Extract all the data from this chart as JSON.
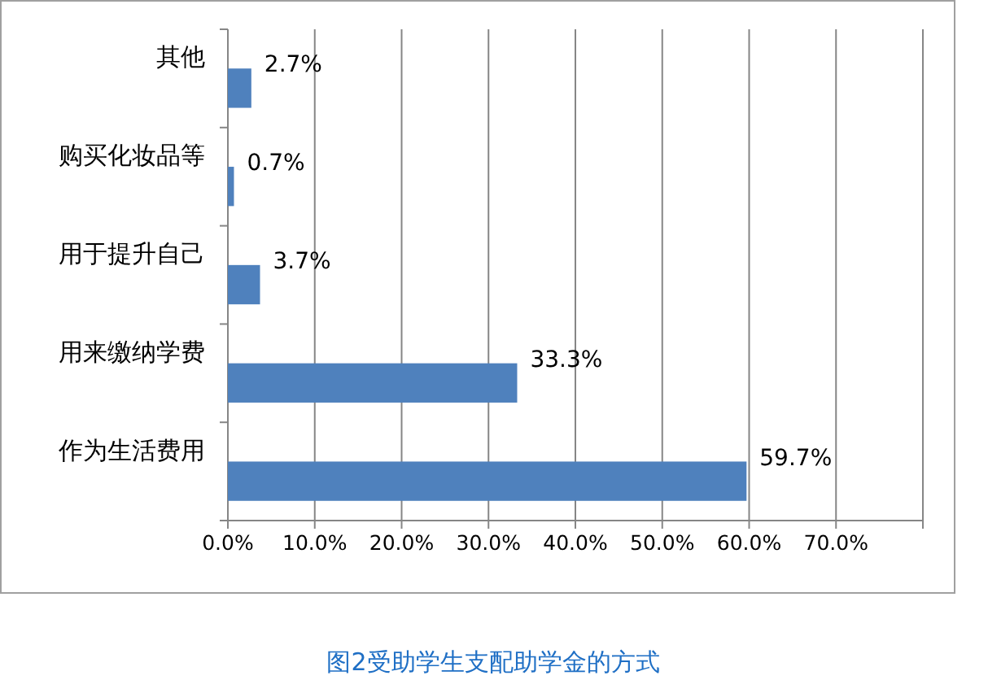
{
  "chart_data": {
    "type": "bar",
    "orientation": "horizontal",
    "title": "图2受助学生支配助学金的方式",
    "categories": [
      "其他",
      "购买化妆品等",
      "用于提升自己",
      "用来缴纳学费",
      "作为生活费用"
    ],
    "values": [
      2.7,
      0.7,
      3.7,
      33.3,
      59.7
    ],
    "value_labels": [
      "2.7%",
      "0.7%",
      "3.7%",
      "33.3%",
      "59.7%"
    ],
    "color": "#4f81bd",
    "xlim": [
      0,
      80
    ],
    "xticks": [
      {
        "value": 0,
        "label": "0.0%"
      },
      {
        "value": 10,
        "label": "10.0%"
      },
      {
        "value": 20,
        "label": "20.0%"
      },
      {
        "value": 30,
        "label": "30.0%"
      },
      {
        "value": 40,
        "label": "40.0%"
      },
      {
        "value": 50,
        "label": "50.0%"
      },
      {
        "value": 60,
        "label": "60.0%"
      },
      {
        "value": 70,
        "label": "70.0%"
      },
      {
        "value": 80,
        "label": null
      }
    ],
    "grid": "x"
  }
}
